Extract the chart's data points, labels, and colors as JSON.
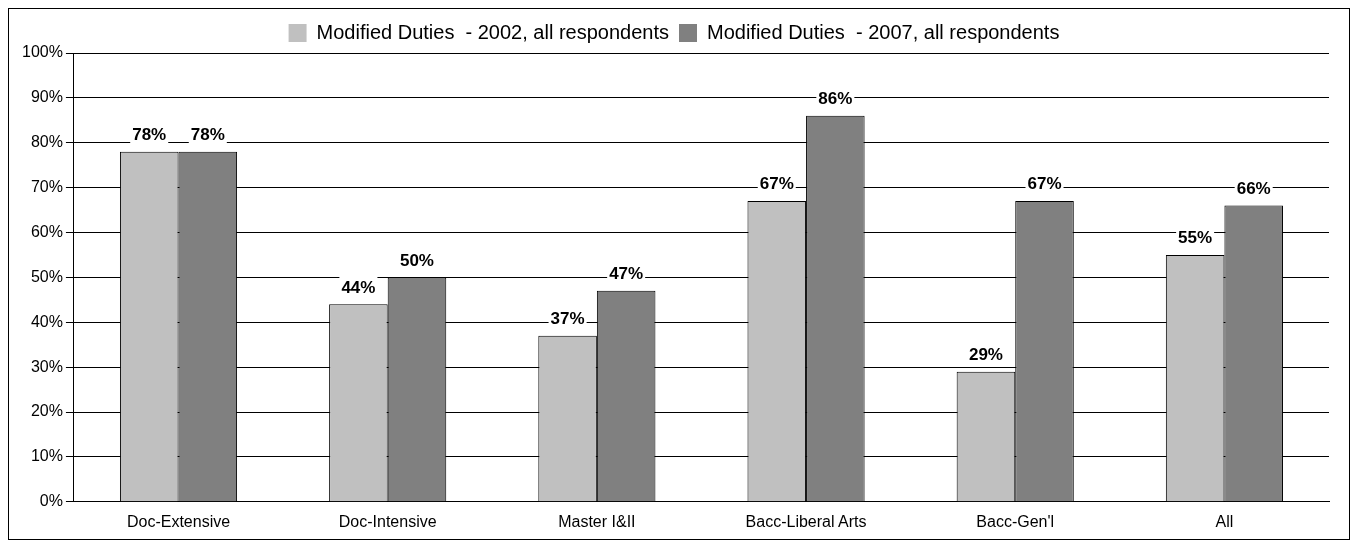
{
  "chart_data": {
    "type": "bar",
    "categories": [
      "Doc-Extensive",
      "Doc-Intensive",
      "Master I&II",
      "Bacc-Liberal Arts",
      "Bacc-Gen'l",
      "All"
    ],
    "series": [
      {
        "name": "Modified Duties  - 2002, all respondents",
        "color": "#c0c0c0",
        "values": [
          78,
          44,
          37,
          67,
          29,
          55
        ],
        "value_labels": [
          "78%",
          "44%",
          "37%",
          "67%",
          "29%",
          "55%"
        ]
      },
      {
        "name": "Modified Duties  - 2007, all respondents",
        "color": "#808080",
        "values": [
          78,
          50,
          47,
          86,
          67,
          66
        ],
        "value_labels": [
          "78%",
          "50%",
          "47%",
          "86%",
          "67%",
          "66%"
        ]
      }
    ],
    "ylim": [
      0,
      100
    ],
    "yticks": [
      {
        "value": 0,
        "label": "0%"
      },
      {
        "value": 10,
        "label": "10%"
      },
      {
        "value": 20,
        "label": "20%"
      },
      {
        "value": 30,
        "label": "30%"
      },
      {
        "value": 40,
        "label": "40%"
      },
      {
        "value": 50,
        "label": "50%"
      },
      {
        "value": 60,
        "label": "60%"
      },
      {
        "value": 70,
        "label": "70%"
      },
      {
        "value": 80,
        "label": "80%"
      },
      {
        "value": 90,
        "label": "90%"
      },
      {
        "value": 100,
        "label": "100%"
      }
    ],
    "grid": "y",
    "legend": "top"
  }
}
